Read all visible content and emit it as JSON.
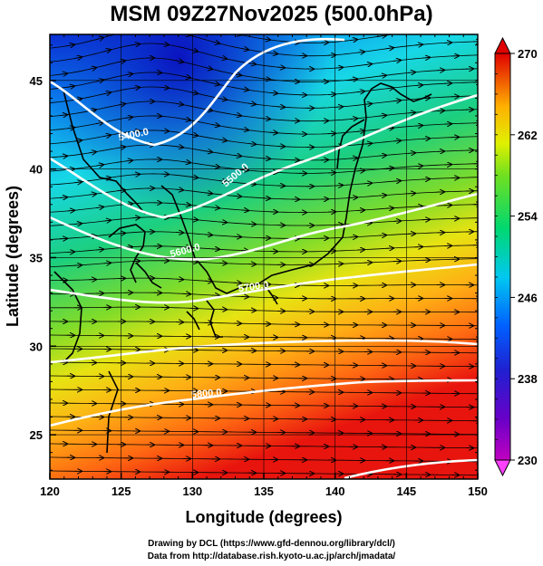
{
  "title": "MSM 09Z27Nov2025 (500.0hPa)",
  "x_axis": {
    "label": "Longitude (degrees)",
    "range": [
      120,
      150
    ],
    "ticks": [
      "120",
      "125",
      "130",
      "135",
      "140",
      "145",
      "150"
    ]
  },
  "y_axis": {
    "label": "Latitude  (degrees)",
    "range": [
      22.5,
      47.6
    ],
    "ticks": [
      "25",
      "30",
      "35",
      "40",
      "45"
    ]
  },
  "colorbar": {
    "min": 230,
    "max": 270,
    "ticks": [
      "230",
      "238",
      "246",
      "254",
      "262",
      "270"
    ],
    "colors": [
      "#c000c0",
      "#4000d0",
      "#0060ff",
      "#00d0ff",
      "#00d870",
      "#60e020",
      "#e0f000",
      "#ffb000",
      "#ff5000",
      "#e00000"
    ]
  },
  "contours": [
    {
      "label": "5400.0"
    },
    {
      "label": "5500.0"
    },
    {
      "label": "5600.0"
    },
    {
      "label": "5700.0"
    },
    {
      "label": "5800.0"
    },
    {
      "label": "5900.0"
    }
  ],
  "credits": {
    "line1": "Drawing by DCL (https://www.gfd-dennou.org/library/dcl/)",
    "line2": "Data from http://database.rish.kyoto-u.ac.jp/arch/jmadata/"
  }
}
